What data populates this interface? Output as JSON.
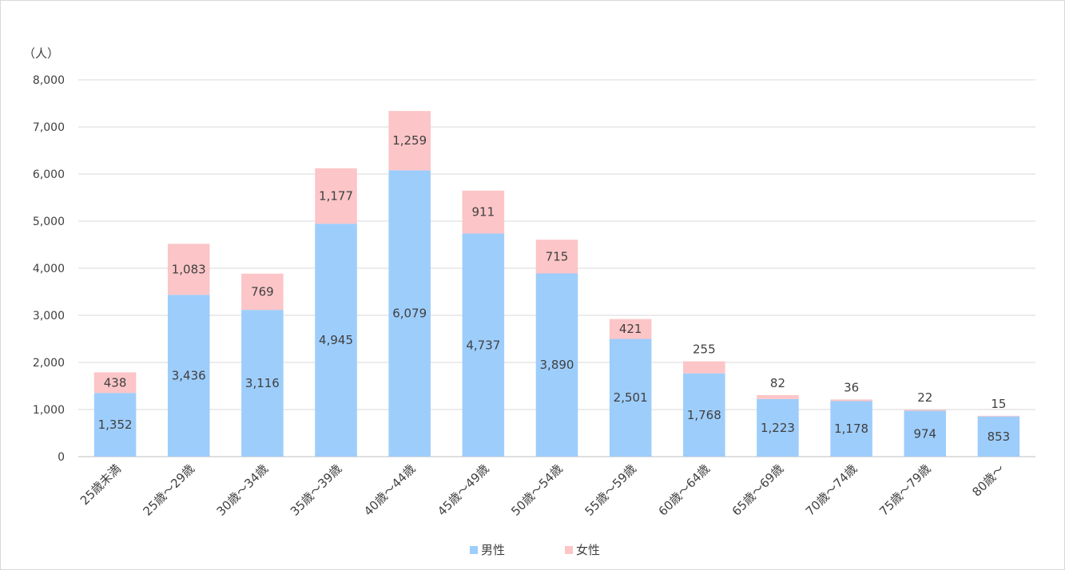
{
  "chart_data": {
    "type": "bar",
    "stacked": true,
    "unit_label": "（人）",
    "categories": [
      "25歳未満",
      "25歳～29歳",
      "30歳～34歳",
      "35歳～39歳",
      "40歳～44歳",
      "45歳～49歳",
      "50歳～54歳",
      "55歳～59歳",
      "60歳～64歳",
      "65歳～69歳",
      "70歳～74歳",
      "75歳～79歳",
      "80歳～"
    ],
    "series": [
      {
        "name": "男性",
        "color": "#9dcdfb",
        "values": [
          1352,
          3436,
          3116,
          4945,
          6079,
          4737,
          3890,
          2501,
          1768,
          1223,
          1178,
          974,
          853
        ]
      },
      {
        "name": "女性",
        "color": "#fcc5c7",
        "values": [
          438,
          1083,
          769,
          1177,
          1259,
          911,
          715,
          421,
          255,
          82,
          36,
          22,
          15
        ]
      }
    ],
    "ylim": [
      0,
      8000
    ],
    "yticks": [
      0,
      1000,
      2000,
      3000,
      4000,
      5000,
      6000,
      7000,
      8000
    ],
    "ytick_labels": [
      "0",
      "1,000",
      "2,000",
      "3,000",
      "4,000",
      "5,000",
      "6,000",
      "7,000",
      "8,000"
    ],
    "grid": true,
    "legend_position": "bottom"
  }
}
